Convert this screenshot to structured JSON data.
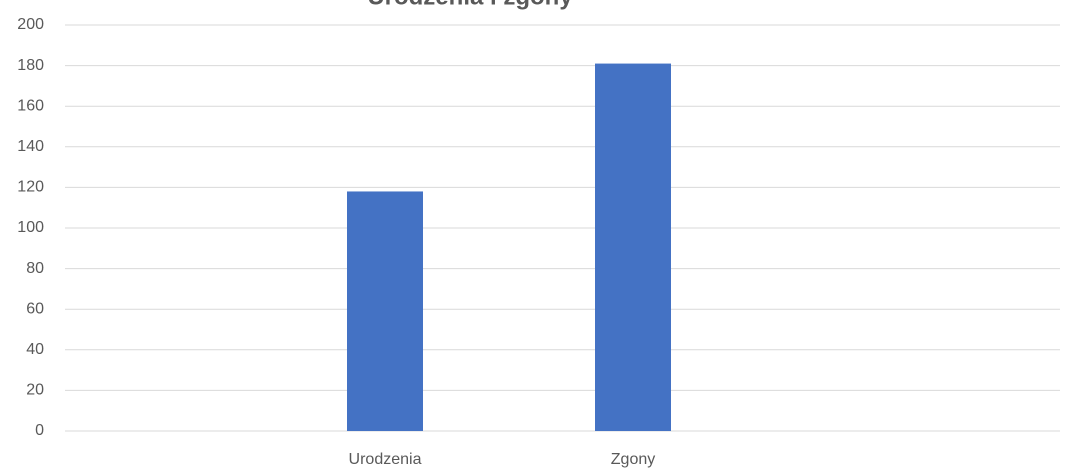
{
  "chart_data": {
    "type": "bar",
    "title": "Urodzenia i zgony",
    "categories": [
      "Urodzenia",
      "Zgony"
    ],
    "values": [
      118,
      181
    ],
    "color": "#4472c4",
    "ylim": [
      0,
      200
    ],
    "yticks": [
      0,
      20,
      40,
      60,
      80,
      100,
      120,
      140,
      160,
      180,
      200
    ],
    "grid": true
  }
}
